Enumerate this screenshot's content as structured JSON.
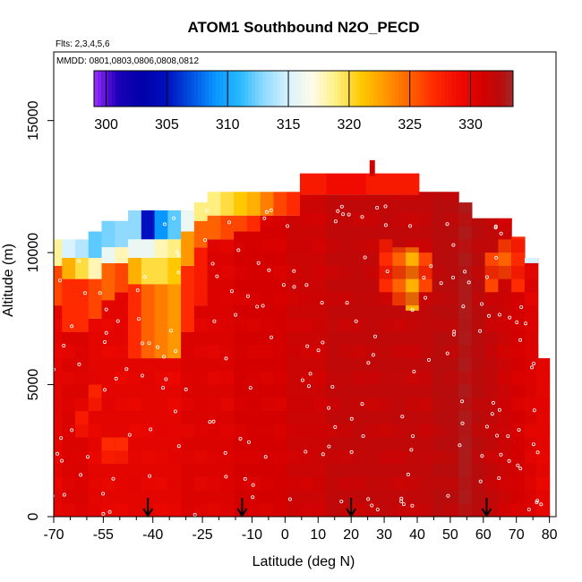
{
  "chart_data": {
    "type": "heatmap",
    "title": "ATOM1 Southbound N2O_PECD",
    "flights_note": "Flts: 2,3,4,5,6",
    "dates_note": "MMDD: 0801,0803,0806,0808,0812",
    "xlabel": "Latitude (deg N)",
    "ylabel": "Altitude (m)",
    "xlim": [
      -70,
      82
    ],
    "ylim": [
      0,
      17600
    ],
    "x_tick_values": [
      -70,
      -55,
      -40,
      -25,
      -10,
      0,
      10,
      20,
      30,
      40,
      50,
      60,
      70,
      80
    ],
    "x_tick_labels": [
      "-70",
      "-55",
      "-40",
      "-25",
      "-10",
      "0",
      "10",
      "20",
      "30",
      "40",
      "50",
      "60",
      "70",
      "80"
    ],
    "x_minor_ticks": [
      -65,
      -60,
      -50,
      -45,
      -35,
      -30,
      -20,
      -15,
      -5,
      5,
      15,
      25,
      35,
      45,
      55,
      65,
      75
    ],
    "y_tick_values": [
      0,
      5000,
      10000,
      15000
    ],
    "y_tick_labels": [
      "0",
      "5000",
      "10000",
      "15000"
    ],
    "colorbar": {
      "range": [
        299,
        333.5
      ],
      "tick_values": [
        300,
        305,
        310,
        315,
        320,
        325,
        330
      ],
      "tick_labels": [
        "300",
        "305",
        "310",
        "315",
        "320",
        "325",
        "330"
      ],
      "stops": [
        {
          "v": 299,
          "c": "#9a32ff"
        },
        {
          "v": 300,
          "c": "#5a10d8"
        },
        {
          "v": 301,
          "c": "#1a00b8"
        },
        {
          "v": 303,
          "c": "#0000a8"
        },
        {
          "v": 305,
          "c": "#0010c0"
        },
        {
          "v": 307,
          "c": "#0050e0"
        },
        {
          "v": 309,
          "c": "#0a96ff"
        },
        {
          "v": 311,
          "c": "#28b8ff"
        },
        {
          "v": 313,
          "c": "#90daff"
        },
        {
          "v": 315,
          "c": "#d8f2ff"
        },
        {
          "v": 317,
          "c": "#fffbe8"
        },
        {
          "v": 319,
          "c": "#ffef80"
        },
        {
          "v": 321,
          "c": "#ffc800"
        },
        {
          "v": 323,
          "c": "#ff9800"
        },
        {
          "v": 325,
          "c": "#ff6200"
        },
        {
          "v": 327,
          "c": "#ff2a00"
        },
        {
          "v": 329,
          "c": "#f00a00"
        },
        {
          "v": 331,
          "c": "#d40000"
        },
        {
          "v": 332.5,
          "c": "#b80c0c"
        },
        {
          "v": 333.5,
          "c": "#a42828"
        }
      ]
    },
    "arrow_latitudes": [
      -41.5,
      -13,
      20,
      61
    ],
    "columns": [
      {
        "lat": -69.3,
        "top": 10500,
        "regions": [
          [
            9500,
            10500,
            318.5
          ],
          [
            8000,
            9500,
            326
          ],
          [
            0,
            8000,
            330
          ]
        ]
      },
      {
        "lat": -65.5,
        "top": 10500,
        "regions": [
          [
            9800,
            10500,
            315
          ],
          [
            9000,
            9800,
            322
          ],
          [
            7000,
            9000,
            327
          ],
          [
            0,
            7000,
            330.5
          ]
        ]
      },
      {
        "lat": -61.5,
        "top": 10500,
        "regions": [
          [
            9800,
            10500,
            314
          ],
          [
            9000,
            9800,
            320
          ],
          [
            7000,
            9000,
            327
          ],
          [
            3000,
            4000,
            328
          ],
          [
            0,
            7000,
            330.5
          ]
        ]
      },
      {
        "lat": -57.5,
        "top": 10800,
        "regions": [
          [
            9800,
            10800,
            312
          ],
          [
            9000,
            9800,
            318
          ],
          [
            7500,
            9000,
            326
          ],
          [
            4000,
            5000,
            327.5
          ],
          [
            0,
            7500,
            330
          ]
        ]
      },
      {
        "lat": -53.5,
        "top": 11200,
        "regions": [
          [
            10200,
            11200,
            312.5
          ],
          [
            9600,
            10200,
            316
          ],
          [
            8200,
            9600,
            325
          ],
          [
            2000,
            3000,
            327
          ],
          [
            0,
            8200,
            330
          ]
        ]
      },
      {
        "lat": -49.5,
        "top": 11200,
        "regions": [
          [
            10200,
            11200,
            313
          ],
          [
            9600,
            10200,
            318
          ],
          [
            8500,
            9600,
            326
          ],
          [
            2000,
            3000,
            327
          ],
          [
            0,
            8500,
            330
          ]
        ]
      },
      {
        "lat": -45.5,
        "top": 11600,
        "regions": [
          [
            10500,
            11600,
            313
          ],
          [
            9800,
            10500,
            316
          ],
          [
            8800,
            9800,
            322
          ],
          [
            6000,
            8800,
            327
          ],
          [
            0,
            6000,
            330
          ]
        ]
      },
      {
        "lat": -41.5,
        "top": 11600,
        "regions": [
          [
            10500,
            11600,
            305
          ],
          [
            9800,
            10500,
            316
          ],
          [
            8800,
            9800,
            320
          ],
          [
            6000,
            8800,
            325
          ],
          [
            0,
            6000,
            330
          ]
        ]
      },
      {
        "lat": -37.5,
        "top": 11600,
        "regions": [
          [
            10500,
            11600,
            309
          ],
          [
            9800,
            10500,
            318
          ],
          [
            8800,
            9800,
            320
          ],
          [
            6000,
            8800,
            324
          ],
          [
            0,
            6000,
            330
          ]
        ]
      },
      {
        "lat": -33.5,
        "top": 11600,
        "regions": [
          [
            10500,
            11600,
            312
          ],
          [
            9800,
            10500,
            319
          ],
          [
            8800,
            9800,
            321
          ],
          [
            6000,
            8800,
            323
          ],
          [
            0,
            6000,
            330
          ]
        ]
      },
      {
        "lat": -29.5,
        "top": 11600,
        "regions": [
          [
            10800,
            11600,
            316
          ],
          [
            9500,
            10800,
            323
          ],
          [
            7000,
            9500,
            327
          ],
          [
            0,
            7000,
            330.5
          ]
        ]
      },
      {
        "lat": -25.5,
        "top": 11900,
        "regions": [
          [
            11200,
            11900,
            319
          ],
          [
            10200,
            11200,
            325
          ],
          [
            8000,
            10200,
            328
          ],
          [
            0,
            8000,
            330.5
          ]
        ]
      },
      {
        "lat": -21.5,
        "top": 12300,
        "regions": [
          [
            11400,
            12300,
            319
          ],
          [
            10500,
            11400,
            325
          ],
          [
            0,
            10500,
            330.5
          ]
        ]
      },
      {
        "lat": -17.5,
        "top": 12300,
        "regions": [
          [
            11400,
            12300,
            320
          ],
          [
            10500,
            11400,
            326
          ],
          [
            0,
            10500,
            330.5
          ]
        ]
      },
      {
        "lat": -13.5,
        "top": 12300,
        "regions": [
          [
            11400,
            12300,
            321
          ],
          [
            10800,
            11400,
            326
          ],
          [
            0,
            10800,
            331
          ]
        ]
      },
      {
        "lat": -9.5,
        "top": 12300,
        "regions": [
          [
            11400,
            12300,
            322
          ],
          [
            10800,
            11400,
            327
          ],
          [
            0,
            10800,
            331
          ]
        ]
      },
      {
        "lat": -5.5,
        "top": 12300,
        "regions": [
          [
            11400,
            12300,
            324
          ],
          [
            0,
            11400,
            331
          ]
        ]
      },
      {
        "lat": -1.5,
        "top": 12300,
        "regions": [
          [
            11400,
            12300,
            326
          ],
          [
            0,
            11400,
            331
          ]
        ]
      },
      {
        "lat": 2.5,
        "top": 12300,
        "regions": [
          [
            11400,
            12300,
            327
          ],
          [
            0,
            11400,
            331.5
          ]
        ]
      },
      {
        "lat": 6.5,
        "top": 13000,
        "regions": [
          [
            12200,
            13000,
            328
          ],
          [
            0,
            12200,
            331.5
          ]
        ]
      },
      {
        "lat": 10.5,
        "top": 13000,
        "regions": [
          [
            12200,
            13000,
            328
          ],
          [
            0,
            12200,
            331.5
          ]
        ]
      },
      {
        "lat": 14.5,
        "top": 13000,
        "regions": [
          [
            12200,
            13000,
            329
          ],
          [
            0,
            12200,
            332
          ]
        ]
      },
      {
        "lat": 18.5,
        "top": 13000,
        "regions": [
          [
            12200,
            13000,
            329
          ],
          [
            0,
            12200,
            332
          ]
        ]
      },
      {
        "lat": 22.5,
        "top": 13000,
        "regions": [
          [
            12200,
            13000,
            329
          ],
          [
            0,
            12200,
            332
          ]
        ]
      },
      {
        "lat": 26.5,
        "top": 13000,
        "regions": [
          [
            12200,
            13000,
            328
          ],
          [
            0,
            12200,
            332
          ]
        ]
      },
      {
        "lat": 30.5,
        "top": 13000,
        "regions": [
          [
            12200,
            13000,
            328
          ],
          [
            8500,
            10500,
            327
          ],
          [
            0,
            12200,
            332
          ]
        ]
      },
      {
        "lat": 34.5,
        "top": 13000,
        "regions": [
          [
            12200,
            13000,
            328
          ],
          [
            8000,
            10200,
            325
          ],
          [
            0,
            12200,
            332
          ]
        ]
      },
      {
        "lat": 38.5,
        "top": 13000,
        "regions": [
          [
            12200,
            13000,
            328
          ],
          [
            7800,
            10200,
            322
          ],
          [
            0,
            12200,
            332
          ]
        ]
      },
      {
        "lat": 42.5,
        "top": 12300,
        "regions": [
          [
            8500,
            10000,
            326
          ],
          [
            0,
            12300,
            332
          ]
        ]
      },
      {
        "lat": 46.5,
        "top": 12300,
        "regions": [
          [
            0,
            12300,
            332.5
          ]
        ]
      },
      {
        "lat": 50.5,
        "top": 12300,
        "regions": [
          [
            0,
            12300,
            332.5
          ]
        ]
      },
      {
        "lat": 54.5,
        "top": 11900,
        "regions": [
          [
            0,
            11900,
            333
          ]
        ]
      },
      {
        "lat": 58.5,
        "top": 11300,
        "regions": [
          [
            0,
            11300,
            332.5
          ]
        ]
      },
      {
        "lat": 62.5,
        "top": 11300,
        "regions": [
          [
            8500,
            10000,
            326
          ],
          [
            0,
            11300,
            332
          ]
        ]
      },
      {
        "lat": 66.5,
        "top": 11300,
        "regions": [
          [
            9000,
            10500,
            325
          ],
          [
            0,
            11300,
            331.5
          ]
        ]
      },
      {
        "lat": 70.5,
        "top": 10600,
        "regions": [
          [
            8500,
            10600,
            327
          ],
          [
            0,
            10600,
            331
          ]
        ]
      },
      {
        "lat": 74.5,
        "top": 9800,
        "regions": [
          [
            9600,
            9800,
            315
          ],
          [
            0,
            9800,
            330.5
          ]
        ]
      },
      {
        "lat": 78,
        "top": 6000,
        "regions": [
          [
            0,
            6000,
            330
          ]
        ]
      }
    ]
  }
}
